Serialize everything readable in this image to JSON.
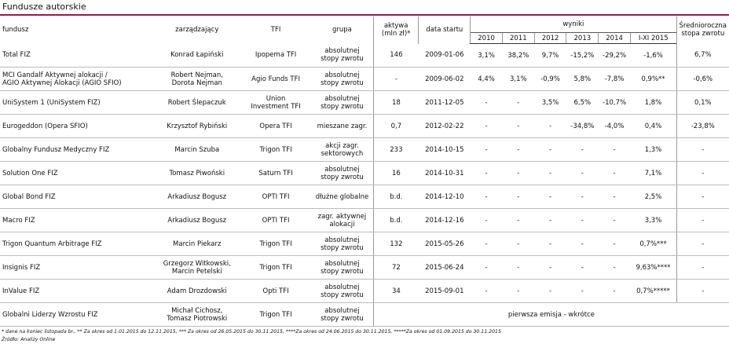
{
  "title": "Fundusze autorskie",
  "header": {
    "fundusz": "fundusz",
    "zarzadzajacy": "zarządzający",
    "tfi": "TFI",
    "grupa": "grupa",
    "aktywa_l1": "aktywa",
    "aktywa_l2": "(mln zł)*",
    "data_startu": "data startu",
    "wyniki": "wyniki",
    "srednio_l1": "Średnioroczna",
    "srednio_l2": "stopa zwrotu",
    "years": [
      "2010",
      "2011",
      "2012",
      "2013",
      "2014",
      "I-XI 2015"
    ]
  },
  "rows": [
    {
      "fund": [
        "Total FIZ"
      ],
      "manager": [
        "Konrad Łapiński"
      ],
      "tfi": [
        "Ipopema TFI"
      ],
      "group": [
        "absolutnej",
        "stopy zwrotu"
      ],
      "assets": "146",
      "start": "2009-01-06",
      "r": [
        "3,1%",
        "38,2%",
        "9,7%",
        "-15,2%",
        "-29,2%",
        "-1,6%"
      ],
      "avg": "6,7%"
    },
    {
      "fund": [
        "MCI Gandalf Aktywnej alokacji /",
        "AGIO Aktywnej Alokacji (AGIO SFIO)"
      ],
      "manager": [
        "Robert Nejman,",
        "Dorota Nejman"
      ],
      "tfi": [
        "Agio Funds TFI"
      ],
      "group": [
        "absolutnej",
        "stopy zwrotu"
      ],
      "assets": "-",
      "start": "2009-06-02",
      "r": [
        "4,4%",
        "3,1%",
        "-0,9%",
        "5,8%",
        "-7,8%",
        "0,9%**"
      ],
      "avg": "-0,6%"
    },
    {
      "fund": [
        "UniSystem 1 (UniSystem FIZ)"
      ],
      "manager": [
        "Robert Ślepaczuk"
      ],
      "tfi": [
        "Union",
        "Investment TFI"
      ],
      "group": [
        "absolutnej",
        "stopy zwrotu"
      ],
      "assets": "18",
      "start": "2011-12-05",
      "r": [
        "-",
        "-",
        "3,5%",
        "6,5%",
        "-10,7%",
        "1,8%"
      ],
      "avg": "0,1%"
    },
    {
      "fund": [
        "Eurogeddon (Opera SFIO)"
      ],
      "manager": [
        "Krzysztof Rybiński"
      ],
      "tfi": [
        "Opera TFI"
      ],
      "group": [
        "mieszane zagr."
      ],
      "assets": "0,7",
      "start": "2012-02-22",
      "r": [
        "-",
        "-",
        "-",
        "-34,8%",
        "-4,0%",
        "0,4%"
      ],
      "avg": "-23,8%"
    },
    {
      "fund": [
        "Globalny Fundusz Medyczny FIZ"
      ],
      "manager": [
        "Marcin Szuba"
      ],
      "tfi": [
        "Trigon TFI"
      ],
      "group": [
        "akcji zagr.",
        "sektorowych"
      ],
      "assets": "233",
      "start": "2014-10-15",
      "r": [
        "-",
        "-",
        "-",
        "-",
        "-",
        "1,3%"
      ],
      "avg": "-"
    },
    {
      "fund": [
        "Solution One FIZ"
      ],
      "manager": [
        "Tomasz Piwoński"
      ],
      "tfi": [
        "Saturn TFI"
      ],
      "group": [
        "absolutnej",
        "stopy zwrotu"
      ],
      "assets": "16",
      "start": "2014-10-31",
      "r": [
        "-",
        "-",
        "-",
        "-",
        "-",
        "7,1%"
      ],
      "avg": "-"
    },
    {
      "fund": [
        "Global Bond FIZ"
      ],
      "manager": [
        "Arkadiusz Bogusz"
      ],
      "tfi": [
        "OPTI TFI"
      ],
      "group": [
        "dłużne globalne"
      ],
      "assets": "b.d.",
      "start": "2014-12-10",
      "r": [
        "-",
        "-",
        "-",
        "-",
        "-",
        "2,5%"
      ],
      "avg": "-"
    },
    {
      "fund": [
        "Macro FIZ"
      ],
      "manager": [
        "Arkadiusz Bogusz"
      ],
      "tfi": [
        "OPTI TFI"
      ],
      "group": [
        "zagr. aktywnej",
        "alokacji"
      ],
      "assets": "b.d.",
      "start": "2014-12-16",
      "r": [
        "-",
        "-",
        "-",
        "-",
        "-",
        "3,3%"
      ],
      "avg": "-"
    },
    {
      "fund": [
        "Trigon Quantum Arbitrage FIZ"
      ],
      "manager": [
        "Marcin Piekarz"
      ],
      "tfi": [
        "Trigon TFI"
      ],
      "group": [
        "absolutnej",
        "stopy zwrotu"
      ],
      "assets": "132",
      "start": "2015-05-26",
      "r": [
        "-",
        "-",
        "-",
        "-",
        "-",
        "0,7%***"
      ],
      "avg": "-"
    },
    {
      "fund": [
        "Insignis FIZ"
      ],
      "manager": [
        "Grzegorz Witkowski,",
        "Marcin Petelski"
      ],
      "tfi": [
        "Trigon TFI"
      ],
      "group": [
        "absolutnej",
        "stopy zwrotu"
      ],
      "assets": "72",
      "start": "2015-06-24",
      "r": [
        "-",
        "-",
        "-",
        "-",
        "-",
        "9,63%****"
      ],
      "avg": "-"
    },
    {
      "fund": [
        "InValue FIZ"
      ],
      "manager": [
        "Adam Drozdowski"
      ],
      "tfi": [
        "Opti TFI"
      ],
      "group": [
        "absolutnej",
        "stopy zwrotu"
      ],
      "assets": "34",
      "start": "2015-09-01",
      "r": [
        "-",
        "-",
        "-",
        "-",
        "-",
        "0,7%*****"
      ],
      "avg": "-"
    }
  ],
  "last_row": {
    "fund": [
      "Globalni Liderzy Wzrostu FIZ"
    ],
    "manager": [
      "Michał Cichosz,",
      "Tomasz Piotrowski"
    ],
    "tfi": [
      "Trigon TFI"
    ],
    "group": [
      "absolutnej",
      "stopy zwrotu"
    ],
    "note": "pierwsza emisja - wkrótce"
  },
  "footnote": "* dane na koniec listopada br., ** Za okres od 1.01.2015 do 12.11.2015, *** Za okres od 26.05.2015 do 30.11.2015, ****Za okres od 24.06.2015 do 30.11.2015, *****Za okres od 01.09.2015 do 30.11.2015",
  "source": "Źródło: Analizy Online"
}
